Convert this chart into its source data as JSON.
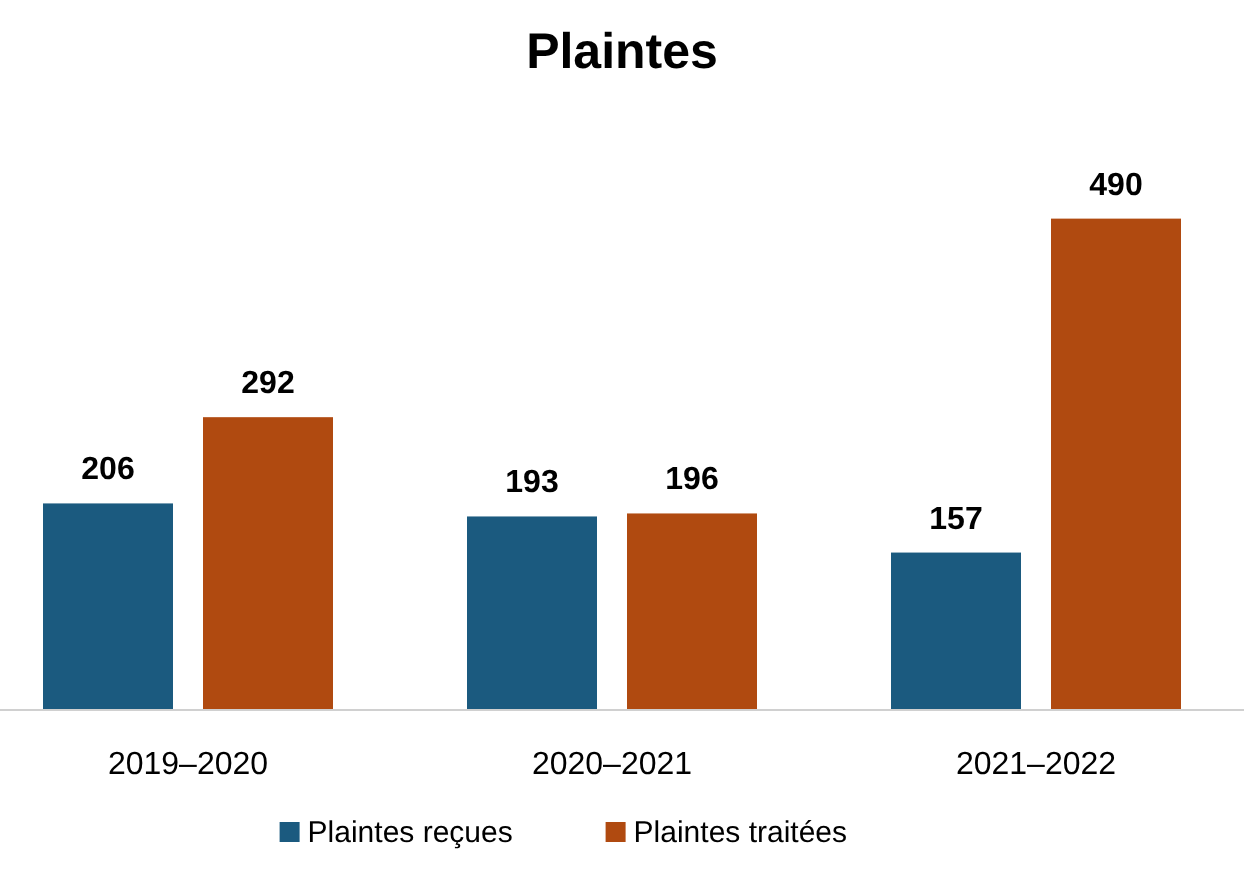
{
  "chart_data": {
    "type": "bar",
    "title": "Plaintes",
    "categories": [
      "2019–2020",
      "2020–2021",
      "2021–2022"
    ],
    "series": [
      {
        "name": "Plaintes reçues",
        "color": "#1b5a7f",
        "values": [
          206,
          193,
          157
        ]
      },
      {
        "name": "Plaintes traitées",
        "color": "#b04a10",
        "values": [
          292,
          196,
          490
        ]
      }
    ],
    "data_labels": true,
    "legend": "bottom"
  }
}
